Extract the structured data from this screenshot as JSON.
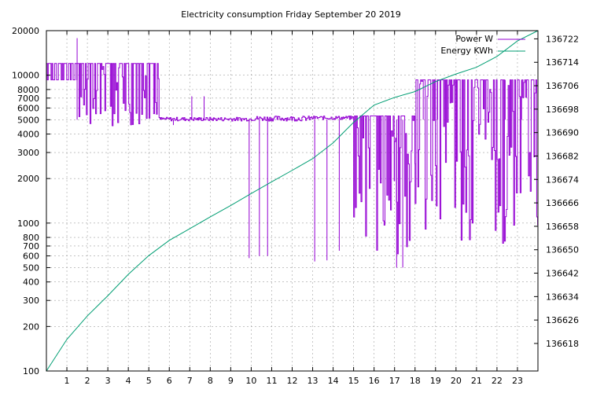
{
  "chart_data": {
    "type": "line",
    "title": "Electricity consumption Friday September 20 2019",
    "xlabel": "",
    "ylabel": "",
    "y2label": "",
    "x_ticks": [
      "1",
      "2",
      "3",
      "4",
      "5",
      "6",
      "7",
      "8",
      "9",
      "10",
      "11",
      "12",
      "13",
      "14",
      "15",
      "16",
      "17",
      "18",
      "19",
      "20",
      "21",
      "22",
      "23"
    ],
    "xlim": [
      0,
      24
    ],
    "y_scale": "log",
    "ylim": [
      100,
      20000
    ],
    "y_ticks": [
      100,
      200,
      300,
      400,
      500,
      600,
      700,
      800,
      1000,
      2000,
      3000,
      4000,
      5000,
      6000,
      7000,
      8000,
      10000,
      20000
    ],
    "y_tick_labels": [
      "100",
      "200",
      "300",
      "400",
      "500",
      "600",
      "700",
      "800",
      "1000",
      "2000",
      "3000",
      "4000",
      "5000",
      "6000",
      "7000",
      "8000",
      "10000",
      "20000"
    ],
    "y2_scale": "linear",
    "y2lim": [
      136608.6,
      136724.8
    ],
    "y2_ticks": [
      136618,
      136626,
      136634,
      136642,
      136650,
      136658,
      136666,
      136674,
      136682,
      136690,
      136698,
      136706,
      136714,
      136722
    ],
    "y2_tick_labels": [
      "136618",
      "136626",
      "136634",
      "136642",
      "136650",
      "136658",
      "136666",
      "136674",
      "136682",
      "136690",
      "136698",
      "136706",
      "136714",
      "136722"
    ],
    "grid": true,
    "legend_position": "top-right",
    "series": [
      {
        "name": "Power W",
        "axis": "y",
        "color": "#9400d3",
        "style": "steps",
        "segments": [
          {
            "from": 0,
            "to": 1.5,
            "low": 9300,
            "high": 12000
          },
          {
            "from": 1.5,
            "to": 5.5,
            "low": 4500,
            "high": 12000
          },
          {
            "from": 5.5,
            "to": 10,
            "low": 4900,
            "high": 5200
          },
          {
            "from": 10,
            "to": 13,
            "low": 4900,
            "high": 5300
          },
          {
            "from": 13,
            "to": 15,
            "low": 5000,
            "high": 5300
          },
          {
            "from": 15,
            "to": 17,
            "low": 650,
            "high": 5300
          },
          {
            "from": 17,
            "to": 18,
            "low": 500,
            "high": 5300
          },
          {
            "from": 18,
            "to": 24,
            "low": 700,
            "high": 9300
          }
        ],
        "spikes": [
          {
            "x": 1.5,
            "y": 17800
          },
          {
            "x": 6.2,
            "y": 4600
          },
          {
            "x": 7.1,
            "y": 7200
          },
          {
            "x": 7.7,
            "y": 7200
          },
          {
            "x": 9.9,
            "y": 580
          },
          {
            "x": 10.4,
            "y": 600
          },
          {
            "x": 10.8,
            "y": 600
          },
          {
            "x": 13.1,
            "y": 550
          },
          {
            "x": 13.7,
            "y": 560
          },
          {
            "x": 14.3,
            "y": 650
          },
          {
            "x": 17.1,
            "y": 500
          },
          {
            "x": 17.4,
            "y": 500
          },
          {
            "x": 18.4,
            "y": 9200
          },
          {
            "x": 19.1,
            "y": 9300
          },
          {
            "x": 22.4,
            "y": 9300
          },
          {
            "x": 23.2,
            "y": 9300
          }
        ]
      },
      {
        "name": "Energy KWh",
        "axis": "y2",
        "color": "#009e73",
        "style": "line",
        "x": [
          0,
          1,
          2,
          3,
          4,
          5,
          6,
          7,
          8,
          9,
          10,
          11,
          12,
          13,
          14,
          15,
          16,
          17,
          18,
          19,
          20,
          21,
          22,
          23,
          24
        ],
        "values": [
          136608.6,
          136619.4,
          136627.4,
          136634.3,
          136641.6,
          136648.0,
          136653.2,
          136657.2,
          136661.2,
          136665.1,
          136669.2,
          136673.2,
          136677.1,
          136681.1,
          136686.5,
          136693.5,
          136699.4,
          136702.0,
          136704.0,
          136707.4,
          136710.0,
          136712.3,
          136716.0,
          136721.3,
          136724.8
        ]
      }
    ]
  }
}
